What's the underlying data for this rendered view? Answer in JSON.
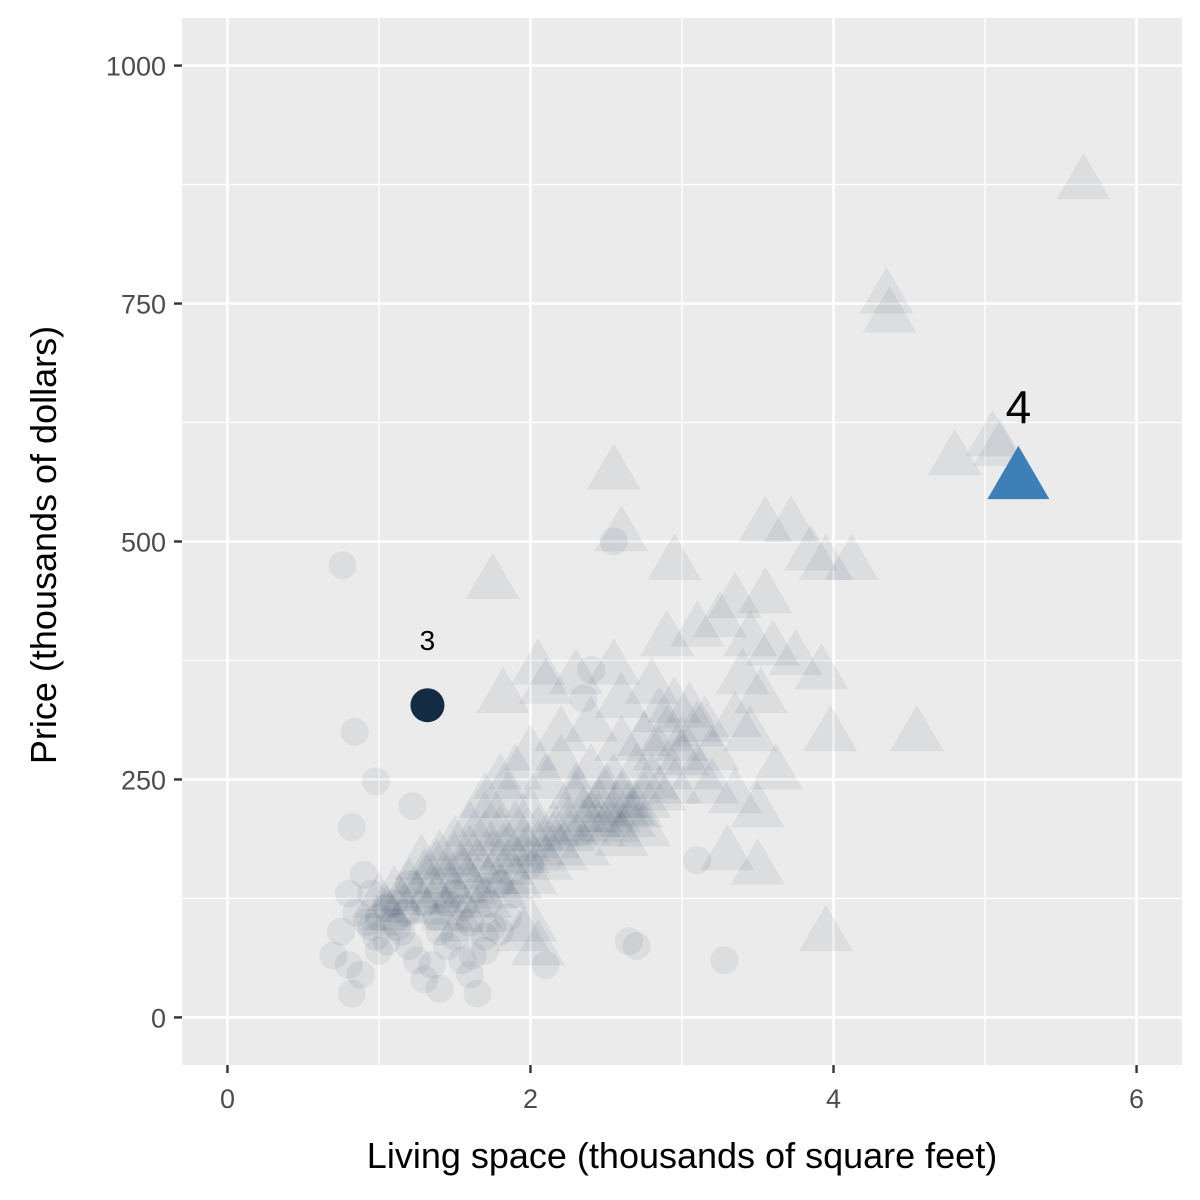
{
  "chart_data": {
    "type": "scatter",
    "title": "",
    "xlabel": "Living space (thousands of square feet)",
    "ylabel": "Price (thousands of dollars)",
    "xlim": [
      -0.3,
      6.3
    ],
    "ylim": [
      -50,
      1050
    ],
    "x_ticks": [
      0,
      2,
      4,
      6
    ],
    "x_tick_labels": [
      "0",
      "2",
      "4",
      "6"
    ],
    "y_ticks": [
      0,
      250,
      500,
      750,
      1000
    ],
    "y_tick_labels": [
      "0",
      "250",
      "500",
      "750",
      "1000"
    ],
    "grid": true,
    "legend": "none",
    "colors": {
      "panel": "#ebebeb",
      "grid": "#ffffff",
      "dark_point": "#132b43",
      "highlight_point": "#3d7fb7",
      "text": "#000000",
      "tick_text": "#4d4d4d"
    },
    "highlighted": [
      {
        "label": "3",
        "x": 1.32,
        "y": 328,
        "shape": "circle"
      },
      {
        "label": "4",
        "x": 5.22,
        "y": 568,
        "shape": "triangle"
      }
    ],
    "series": [
      {
        "shape": "circle",
        "points": [
          [
            0.76,
            475
          ],
          [
            0.84,
            300
          ],
          [
            0.98,
            248
          ],
          [
            0.82,
            200
          ],
          [
            1.22,
            222
          ],
          [
            0.9,
            150
          ],
          [
            0.95,
            130
          ],
          [
            0.8,
            130
          ],
          [
            0.85,
            110
          ],
          [
            0.92,
            100
          ],
          [
            0.95,
            95
          ],
          [
            1.0,
            105
          ],
          [
            0.75,
            90
          ],
          [
            0.7,
            65
          ],
          [
            0.8,
            55
          ],
          [
            0.88,
            45
          ],
          [
            0.82,
            25
          ],
          [
            1.0,
            70
          ],
          [
            1.05,
            80
          ],
          [
            1.1,
            120
          ],
          [
            1.12,
            95
          ],
          [
            1.18,
            110
          ],
          [
            1.25,
            60
          ],
          [
            1.3,
            40
          ],
          [
            1.35,
            55
          ],
          [
            1.4,
            30
          ],
          [
            1.45,
            75
          ],
          [
            1.55,
            60
          ],
          [
            1.6,
            45
          ],
          [
            1.62,
            65
          ],
          [
            1.65,
            25
          ],
          [
            1.7,
            85
          ],
          [
            1.75,
            95
          ],
          [
            1.85,
            105
          ],
          [
            2.1,
            55
          ],
          [
            2.35,
            335
          ],
          [
            2.4,
            365
          ],
          [
            2.55,
            500
          ],
          [
            2.65,
            80
          ],
          [
            2.7,
            75
          ],
          [
            3.1,
            165
          ],
          [
            3.28,
            60
          ],
          [
            1.2,
            140
          ],
          [
            1.3,
            120
          ],
          [
            1.38,
            105
          ],
          [
            1.5,
            130
          ],
          [
            1.55,
            115
          ],
          [
            1.6,
            100
          ],
          [
            1.65,
            135
          ],
          [
            1.72,
            120
          ],
          [
            1.8,
            140
          ],
          [
            1.9,
            130
          ],
          [
            2.0,
            160
          ],
          [
            0.98,
            85
          ],
          [
            1.05,
            115
          ],
          [
            1.1,
            100
          ],
          [
            1.15,
            90
          ],
          [
            1.2,
            75
          ],
          [
            1.4,
            90
          ],
          [
            1.45,
            120
          ],
          [
            1.5,
            85
          ],
          [
            1.7,
            70
          ],
          [
            1.8,
            90
          ]
        ]
      },
      {
        "shape": "triangle",
        "points": [
          [
            2.55,
            575
          ],
          [
            2.6,
            510
          ],
          [
            2.95,
            480
          ],
          [
            1.75,
            460
          ],
          [
            3.55,
            520
          ],
          [
            3.72,
            520
          ],
          [
            3.85,
            490
          ],
          [
            3.95,
            480
          ],
          [
            4.12,
            480
          ],
          [
            3.35,
            440
          ],
          [
            3.55,
            445
          ],
          [
            2.9,
            400
          ],
          [
            3.1,
            410
          ],
          [
            3.25,
            420
          ],
          [
            3.45,
            400
          ],
          [
            3.6,
            390
          ],
          [
            3.75,
            380
          ],
          [
            3.92,
            365
          ],
          [
            4.35,
            760
          ],
          [
            4.37,
            740
          ],
          [
            5.65,
            880
          ],
          [
            5.05,
            610
          ],
          [
            5.1,
            600
          ],
          [
            4.8,
            590
          ],
          [
            3.98,
            300
          ],
          [
            4.55,
            300
          ],
          [
            3.62,
            260
          ],
          [
            3.5,
            220
          ],
          [
            3.3,
            175
          ],
          [
            3.5,
            160
          ],
          [
            3.95,
            90
          ],
          [
            2.05,
            370
          ],
          [
            2.3,
            360
          ],
          [
            2.55,
            370
          ],
          [
            2.6,
            335
          ],
          [
            2.1,
            350
          ],
          [
            1.82,
            340
          ],
          [
            2.4,
            310
          ],
          [
            2.2,
            300
          ],
          [
            3.05,
            325
          ],
          [
            3.15,
            310
          ],
          [
            3.35,
            315
          ],
          [
            3.45,
            300
          ],
          [
            2.8,
            350
          ],
          [
            2.95,
            330
          ],
          [
            2.6,
            290
          ],
          [
            2.75,
            295
          ],
          [
            2.85,
            280
          ],
          [
            3.0,
            275
          ],
          [
            3.1,
            260
          ],
          [
            3.2,
            245
          ],
          [
            3.35,
            235
          ],
          [
            2.5,
            240
          ],
          [
            2.6,
            230
          ],
          [
            2.7,
            220
          ],
          [
            2.55,
            250
          ],
          [
            2.45,
            225
          ],
          [
            2.35,
            215
          ],
          [
            2.25,
            205
          ],
          [
            2.15,
            200
          ],
          [
            2.05,
            195
          ],
          [
            1.95,
            185
          ],
          [
            1.85,
            178
          ],
          [
            1.75,
            170
          ],
          [
            1.65,
            162
          ],
          [
            1.55,
            155
          ],
          [
            1.45,
            145
          ],
          [
            1.35,
            135
          ],
          [
            1.25,
            128
          ],
          [
            1.15,
            120
          ],
          [
            1.05,
            112
          ],
          [
            2.0,
            215
          ],
          [
            1.9,
            200
          ],
          [
            1.8,
            195
          ],
          [
            1.7,
            190
          ],
          [
            2.3,
            240
          ],
          [
            2.4,
            260
          ],
          [
            1.6,
            175
          ],
          [
            1.5,
            168
          ],
          [
            2.2,
            175
          ],
          [
            2.1,
            165
          ],
          [
            2.0,
            150
          ],
          [
            1.9,
            145
          ],
          [
            1.8,
            135
          ],
          [
            1.7,
            125
          ],
          [
            2.7,
            260
          ],
          [
            2.8,
            250
          ],
          [
            2.9,
            300
          ],
          [
            3.0,
            290
          ],
          [
            1.95,
            90
          ],
          [
            2.05,
            75
          ],
          [
            2.0,
            100
          ],
          [
            1.4,
            170
          ],
          [
            1.5,
            185
          ],
          [
            1.6,
            200
          ],
          [
            1.7,
            210
          ],
          [
            1.85,
            230
          ],
          [
            1.65,
            110
          ],
          [
            1.55,
            100
          ],
          [
            1.45,
            112
          ],
          [
            1.35,
            118
          ],
          [
            2.45,
            200
          ],
          [
            2.55,
            205
          ],
          [
            2.65,
            210
          ],
          [
            1.2,
            140
          ],
          [
            1.3,
            150
          ],
          [
            1.1,
            132
          ],
          [
            1.0,
            125
          ],
          [
            1.38,
            160
          ],
          [
            1.28,
            165
          ],
          [
            2.2,
            270
          ],
          [
            2.1,
            250
          ],
          [
            2.3,
            230
          ],
          [
            3.2,
            280
          ],
          [
            3.1,
            305
          ],
          [
            2.85,
            320
          ],
          [
            3.4,
            360
          ],
          [
            3.52,
            340
          ],
          [
            2.0,
            280
          ],
          [
            1.9,
            260
          ],
          [
            1.8,
            250
          ],
          [
            1.7,
            230
          ],
          [
            2.6,
            190
          ],
          [
            2.75,
            200
          ],
          [
            2.35,
            180
          ],
          [
            1.5,
            130
          ],
          [
            1.6,
            140
          ],
          [
            1.75,
            150
          ],
          [
            1.85,
            160
          ],
          [
            1.95,
            172
          ],
          [
            2.05,
            180
          ],
          [
            2.15,
            188
          ],
          [
            2.25,
            195
          ],
          [
            2.35,
            202
          ],
          [
            2.45,
            210
          ],
          [
            2.55,
            215
          ],
          [
            2.65,
            222
          ],
          [
            2.75,
            230
          ],
          [
            2.85,
            238
          ],
          [
            2.95,
            245
          ]
        ]
      }
    ]
  }
}
